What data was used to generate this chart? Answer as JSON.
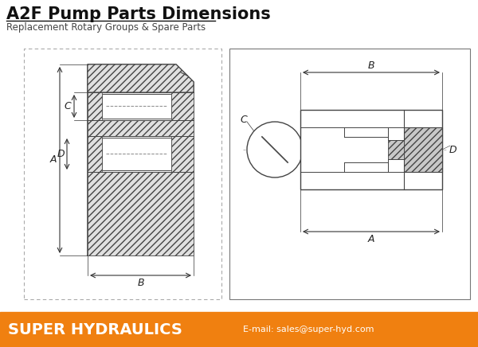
{
  "title": "A2F Pump Parts Dimensions",
  "subtitle": "Replacement Rotary Groups & Spare Parts",
  "title_fontsize": 15,
  "subtitle_fontsize": 8.5,
  "background_color": "#ffffff",
  "drawing_line_color": "#444444",
  "footer_bg_color": "#F08010",
  "footer_text": "SUPER HYDRAULICS",
  "footer_email": "E-mail: sales@super-hyd.com",
  "footer_text_color": "#ffffff",
  "fig_width": 6.0,
  "fig_height": 4.36
}
